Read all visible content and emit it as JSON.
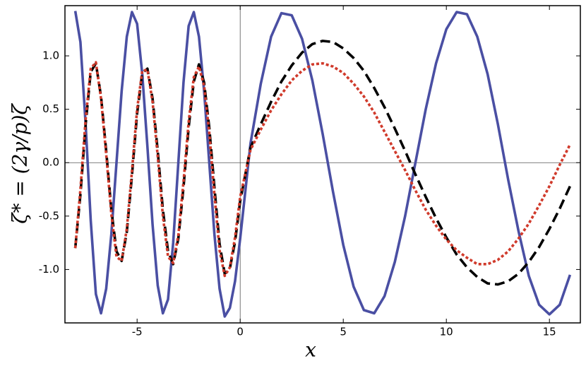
{
  "chart_data": {
    "type": "line",
    "x_label": "x",
    "y_label": "ζ* = (2γ/p)ζ",
    "x": [
      -8,
      -7.75,
      -7.5,
      -7.25,
      -7,
      -6.75,
      -6.5,
      -6.25,
      -6,
      -5.75,
      -5.5,
      -5.25,
      -5,
      -4.75,
      -4.5,
      -4.25,
      -4,
      -3.75,
      -3.5,
      -3.25,
      -3,
      -2.75,
      -2.5,
      -2.25,
      -2,
      -1.75,
      -1.5,
      -1.25,
      -1,
      -0.75,
      -0.5,
      -0.25,
      0,
      0.5,
      1,
      1.5,
      2,
      2.5,
      3,
      3.5,
      4,
      4.5,
      5,
      5.5,
      6,
      6.5,
      7,
      7.5,
      8,
      8.5,
      9,
      9.5,
      10,
      10.5,
      11,
      11.5,
      12,
      12.5,
      13,
      13.5,
      14,
      14.5,
      15,
      15.5,
      16
    ],
    "series": [
      {
        "color": "#4a4fa3",
        "style": "solid",
        "values": [
          1.42,
          1.13,
          0.37,
          -0.54,
          -1.23,
          -1.41,
          -1.18,
          -0.67,
          0,
          0.67,
          1.18,
          1.41,
          1.3,
          0.83,
          0.15,
          -0.58,
          -1.15,
          -1.41,
          -1.28,
          -0.75,
          0,
          0.75,
          1.28,
          1.41,
          1.18,
          0.67,
          0,
          -0.67,
          -1.18,
          -1.44,
          -1.36,
          -1.11,
          -0.71,
          0.18,
          0.74,
          1.18,
          1.4,
          1.38,
          1.16,
          0.77,
          0.27,
          -0.27,
          -0.77,
          -1.16,
          -1.38,
          -1.41,
          -1.25,
          -0.93,
          -0.5,
          0,
          0.5,
          0.93,
          1.25,
          1.41,
          1.39,
          1.18,
          0.83,
          0.36,
          -0.16,
          -0.64,
          -1.06,
          -1.33,
          -1.42,
          -1.33,
          -1.05
        ]
      },
      {
        "color": "#000000",
        "style": "dashed",
        "values": [
          -0.8,
          -0.3,
          0.35,
          0.85,
          0.93,
          0.62,
          0.11,
          -0.44,
          -0.83,
          -0.92,
          -0.65,
          -0.12,
          0.46,
          0.84,
          0.88,
          0.6,
          0.11,
          -0.44,
          -0.83,
          -0.95,
          -0.71,
          -0.23,
          0.33,
          0.76,
          0.92,
          0.75,
          0.33,
          -0.23,
          -0.76,
          -1.04,
          -0.99,
          -0.74,
          -0.36,
          0.14,
          0.36,
          0.57,
          0.76,
          0.91,
          1.03,
          1.11,
          1.14,
          1.13,
          1.07,
          0.98,
          0.86,
          0.7,
          0.52,
          0.32,
          0.11,
          -0.11,
          -0.32,
          -0.52,
          -0.7,
          -0.86,
          -0.98,
          -1.07,
          -1.13,
          -1.14,
          -1.11,
          -1.04,
          -0.93,
          -0.79,
          -0.62,
          -0.43,
          -0.22
        ]
      },
      {
        "color": "#d03a2b",
        "style": "dotted",
        "values": [
          -0.8,
          -0.25,
          0.4,
          0.88,
          0.94,
          0.6,
          0.08,
          -0.48,
          -0.88,
          -0.92,
          -0.62,
          -0.08,
          0.5,
          0.86,
          0.87,
          0.57,
          0.06,
          -0.5,
          -0.88,
          -0.94,
          -0.68,
          -0.18,
          0.38,
          0.8,
          0.9,
          0.72,
          0.28,
          -0.3,
          -0.82,
          -1.06,
          -0.98,
          -0.7,
          -0.32,
          0.12,
          0.31,
          0.49,
          0.64,
          0.77,
          0.86,
          0.92,
          0.93,
          0.9,
          0.84,
          0.74,
          0.62,
          0.47,
          0.29,
          0.11,
          -0.07,
          -0.26,
          -0.44,
          -0.59,
          -0.72,
          -0.82,
          -0.89,
          -0.95,
          -0.95,
          -0.91,
          -0.83,
          -0.71,
          -0.57,
          -0.4,
          -0.22,
          -0.02,
          0.17
        ]
      }
    ],
    "xlim": [
      -8.5,
      16.5
    ],
    "ylim": [
      -1.5,
      1.47
    ],
    "xticks": [
      -5,
      0,
      5,
      10,
      15
    ],
    "yticks": [
      {
        "value": -1,
        "label": "-1.0"
      },
      -0.5,
      {
        "value": 0,
        "label": "0.0"
      },
      0.5,
      {
        "value": 1,
        "label": "1.0"
      }
    ],
    "zero_lines": true
  }
}
